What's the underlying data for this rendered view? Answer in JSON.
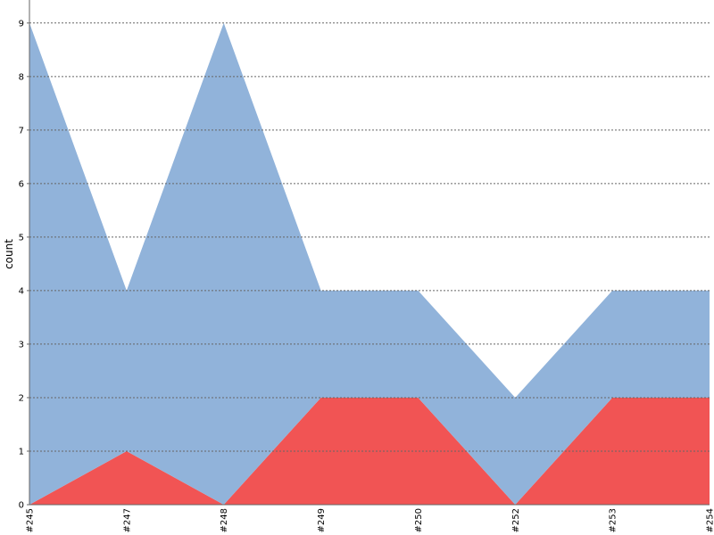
{
  "chart_data": {
    "type": "stacked-area",
    "y_label": "count",
    "categories": [
      "#245",
      "#247",
      "#248",
      "#249",
      "#250",
      "#252",
      "#253",
      "#254"
    ],
    "series": [
      {
        "color": "#f15454",
        "values": [
          0,
          1,
          0,
          2,
          2,
          0,
          2,
          2
        ]
      },
      {
        "color": "#91b3da",
        "values": [
          9,
          3,
          9,
          2,
          2,
          2,
          2,
          2
        ]
      }
    ],
    "ylim": [
      0,
      9.43
    ],
    "yticks": [
      0,
      1,
      2,
      3,
      4,
      5,
      6,
      7,
      8,
      9
    ],
    "grid": true
  }
}
